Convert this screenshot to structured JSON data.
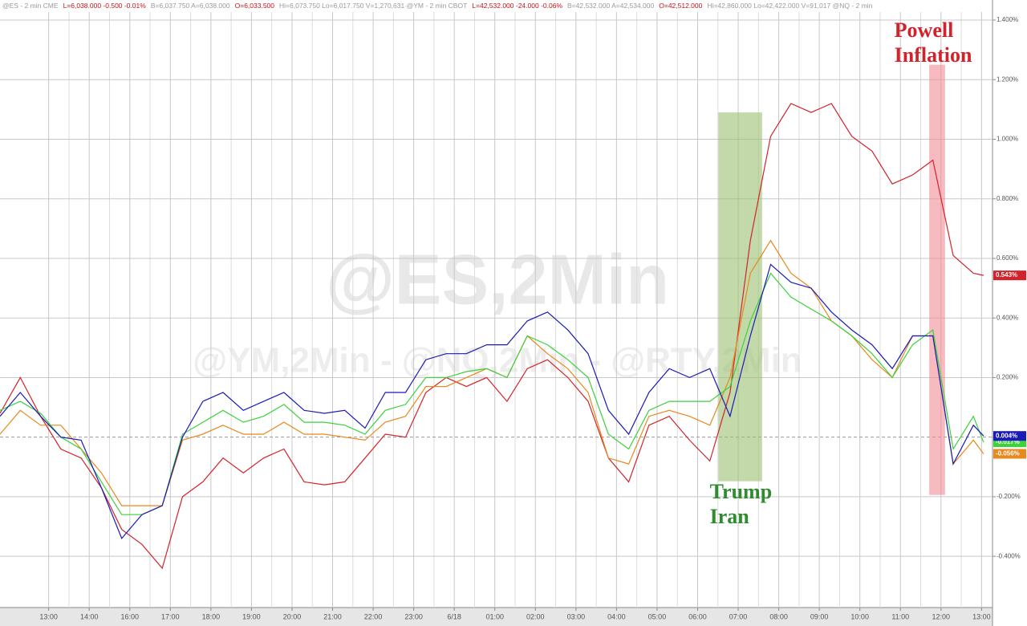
{
  "chart_data": {
    "type": "line",
    "header": [
      {
        "text": "@ES - 2 min  CME",
        "color": "#9a9a9a"
      },
      {
        "text": "L=6,038.000  -0.500  -0.01%",
        "color": "#c0161b"
      },
      {
        "text": "B=6,037.750  A=6,038.000",
        "color": "#9a9a9a"
      },
      {
        "text": "O=6,033.500",
        "color": "#c0161b"
      },
      {
        "text": "Hi=6,073.750  Lo=6,017.750  V=1,270,631  @YM - 2 min  CBOT",
        "color": "#9a9a9a"
      },
      {
        "text": "L=42,532.000  -24.000  -0.06%",
        "color": "#c0161b"
      },
      {
        "text": "B=42,532.000  A=42,534.000",
        "color": "#9a9a9a"
      },
      {
        "text": "O=42,512.000",
        "color": "#c0161b"
      },
      {
        "text": "Hi=42,860.000  Lo=42,422.000  V=91,017  @NQ - 2 min",
        "color": "#9a9a9a"
      }
    ],
    "watermarks": [
      "@ES,2Min",
      "@YM,2Min - @NQ,2Min - @RTY,2Min"
    ],
    "annotations": [
      {
        "lines": [
          "Trump",
          "Iran"
        ],
        "color": "#2e8b2e",
        "x": 17.5,
        "y": -0.19
      },
      {
        "lines": [
          "Powell",
          "Inflation"
        ],
        "color": "#d2232a",
        "x": 22.05,
        "y": 1.36
      }
    ],
    "highlights": [
      {
        "x": [
          17.71,
          18.79
        ],
        "y": [
          -0.148,
          1.09
        ],
        "color": "#9bbf72"
      },
      {
        "x": [
          22.91,
          23.3
        ],
        "y": [
          -0.194,
          1.25
        ],
        "color": "#f08c96"
      }
    ],
    "x": [
      0,
      0.5,
      1,
      1.5,
      2,
      2.5,
      3,
      3.5,
      4,
      4.5,
      5,
      5.5,
      6,
      6.5,
      7,
      7.5,
      8,
      8.5,
      9,
      9.5,
      10,
      10.5,
      11,
      11.5,
      12,
      12.5,
      13,
      13.5,
      14,
      14.5,
      15,
      15.5,
      16,
      16.5,
      17,
      17.5,
      18,
      18.5,
      19,
      19.5,
      20,
      20.5,
      21,
      21.5,
      22,
      22.5,
      23,
      23.5,
      24,
      24.25
    ],
    "series": [
      {
        "name": "RTY",
        "color": "#d2232a",
        "last_label": "0.543%",
        "values": [
          0.08,
          0.2,
          0.07,
          -0.04,
          -0.07,
          -0.17,
          -0.31,
          -0.36,
          -0.44,
          -0.2,
          -0.15,
          -0.07,
          -0.12,
          -0.07,
          -0.04,
          -0.15,
          -0.16,
          -0.15,
          -0.07,
          0.01,
          0,
          0.15,
          0.2,
          0.17,
          0.2,
          0.12,
          0.23,
          0.26,
          0.2,
          0.12,
          -0.07,
          -0.15,
          0.04,
          0.07,
          -0.01,
          -0.08,
          0.15,
          0.66,
          1.01,
          1.12,
          1.09,
          1.12,
          1.01,
          0.96,
          0.85,
          0.88,
          0.93,
          0.61,
          0.55,
          0.543
        ]
      },
      {
        "name": "ES",
        "color": "#e8891d",
        "last_label": "-0.056%",
        "values": [
          0.01,
          0.09,
          0.04,
          0.04,
          -0.04,
          -0.12,
          -0.23,
          -0.23,
          -0.23,
          -0.01,
          0.01,
          0.04,
          0.01,
          0.01,
          0.05,
          0.01,
          0.01,
          0,
          -0.01,
          0.05,
          0.07,
          0.17,
          0.17,
          0.2,
          0.23,
          0.2,
          0.34,
          0.28,
          0.23,
          0.15,
          -0.07,
          -0.09,
          0.07,
          0.09,
          0.07,
          0.04,
          0.2,
          0.55,
          0.66,
          0.55,
          0.5,
          0.39,
          0.34,
          0.26,
          0.2,
          0.34,
          0.34,
          -0.09,
          -0.01,
          -0.056
        ]
      },
      {
        "name": "YM",
        "color": "#3bd23b",
        "last_label": "-0.017%",
        "values": [
          0.09,
          0.12,
          0.08,
          0,
          -0.04,
          -0.15,
          -0.26,
          -0.26,
          -0.23,
          0.01,
          0.05,
          0.09,
          0.05,
          0.07,
          0.11,
          0.05,
          0.05,
          0.04,
          0.01,
          0.09,
          0.11,
          0.2,
          0.2,
          0.22,
          0.23,
          0.2,
          0.34,
          0.31,
          0.26,
          0.2,
          0.01,
          -0.04,
          0.09,
          0.12,
          0.12,
          0.12,
          0.17,
          0.39,
          0.55,
          0.47,
          0.43,
          0.39,
          0.34,
          0.28,
          0.2,
          0.31,
          0.36,
          -0.04,
          0.07,
          -0.017
        ]
      },
      {
        "name": "NQ",
        "color": "#1a1ab8",
        "last_label": "0.004%",
        "values": [
          0.07,
          0.15,
          0.07,
          0,
          -0.01,
          -0.17,
          -0.34,
          -0.26,
          -0.23,
          0,
          0.12,
          0.15,
          0.09,
          0.12,
          0.15,
          0.09,
          0.08,
          0.09,
          0.03,
          0.15,
          0.15,
          0.26,
          0.28,
          0.28,
          0.31,
          0.31,
          0.39,
          0.42,
          0.36,
          0.28,
          0.09,
          0.01,
          0.15,
          0.23,
          0.2,
          0.23,
          0.07,
          0.34,
          0.58,
          0.52,
          0.5,
          0.42,
          0.36,
          0.31,
          0.23,
          0.34,
          0.34,
          -0.09,
          0.04,
          0.004
        ]
      }
    ],
    "xlim": [
      0,
      24.47
    ],
    "xticks": [
      {
        "value": 1.2,
        "label": "13:00"
      },
      {
        "value": 2.2,
        "label": "14:00"
      },
      {
        "value": 3.2,
        "label": "16:00"
      },
      {
        "value": 4.2,
        "label": "17:00"
      },
      {
        "value": 5.2,
        "label": "18:00"
      },
      {
        "value": 6.2,
        "label": "19:00"
      },
      {
        "value": 7.2,
        "label": "20:00"
      },
      {
        "value": 8.2,
        "label": "21:00"
      },
      {
        "value": 9.2,
        "label": "22:00"
      },
      {
        "value": 10.2,
        "label": "23:00"
      },
      {
        "value": 11.2,
        "label": "6/18"
      },
      {
        "value": 12.2,
        "label": "01:00"
      },
      {
        "value": 13.2,
        "label": "02:00"
      },
      {
        "value": 14.2,
        "label": "03:00"
      },
      {
        "value": 15.2,
        "label": "04:00"
      },
      {
        "value": 16.2,
        "label": "05:00"
      },
      {
        "value": 17.2,
        "label": "06:00"
      },
      {
        "value": 18.2,
        "label": "07:00"
      },
      {
        "value": 19.2,
        "label": "08:00"
      },
      {
        "value": 20.2,
        "label": "09:00"
      },
      {
        "value": 21.2,
        "label": "10:00"
      },
      {
        "value": 22.2,
        "label": "11:00"
      },
      {
        "value": 23.2,
        "label": "12:00"
      },
      {
        "value": 24.2,
        "label": "13:00"
      }
    ],
    "ylim": [
      -0.572,
      1.427
    ],
    "yticks": [
      {
        "value": 1.4,
        "label": "1.400%"
      },
      {
        "value": 1.2,
        "label": "1.200%"
      },
      {
        "value": 1.0,
        "label": "1.000%"
      },
      {
        "value": 0.8,
        "label": "0.800%"
      },
      {
        "value": 0.6,
        "label": "0.600%"
      },
      {
        "value": 0.4,
        "label": "0.400%"
      },
      {
        "value": 0.2,
        "label": "0.200%"
      },
      {
        "value": 0,
        "label": "0"
      },
      {
        "value": -0.2,
        "label": "-0.200%"
      },
      {
        "value": -0.4,
        "label": "-0.400%"
      }
    ],
    "grid": true
  }
}
